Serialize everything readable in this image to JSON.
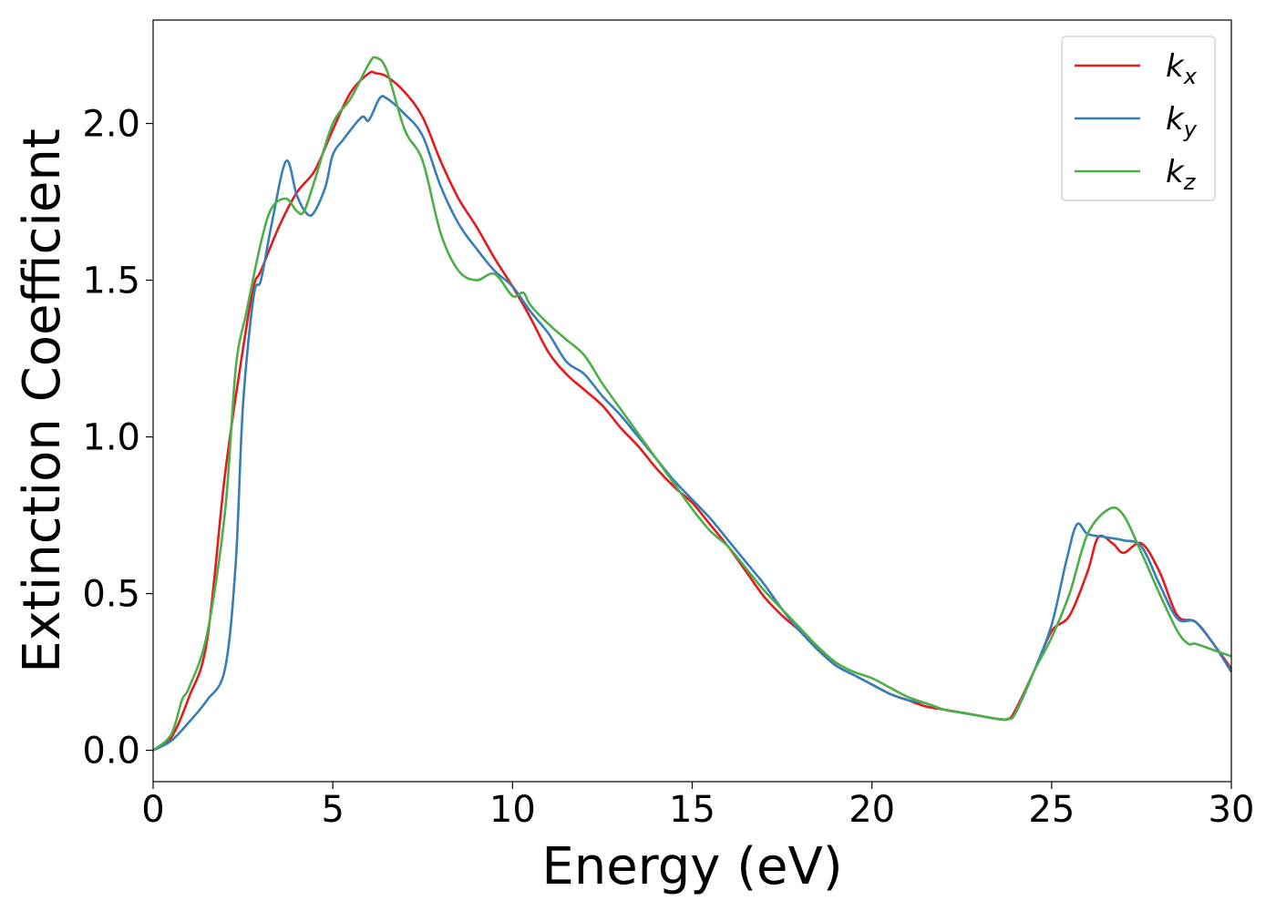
{
  "chart_data": {
    "type": "line",
    "xlabel": "Energy (eV)",
    "ylabel": "Extinction Coefficient",
    "xlim": [
      0,
      30
    ],
    "ylim": [
      -0.1,
      2.33
    ],
    "xticks": [
      0,
      5,
      10,
      15,
      20,
      25,
      30
    ],
    "yticks": [
      0.0,
      0.5,
      1.0,
      1.5,
      2.0
    ],
    "xtick_labels": [
      "0",
      "5",
      "10",
      "15",
      "20",
      "25",
      "30"
    ],
    "ytick_labels": [
      "0.0",
      "0.5",
      "1.0",
      "1.5",
      "2.0"
    ],
    "grid": false,
    "legend_position": "top-right",
    "series": [
      {
        "name": "k_x",
        "base": "k",
        "sub": "x",
        "color": "#e41a1c",
        "x": [
          0,
          0.5,
          1.0,
          1.5,
          2.0,
          2.5,
          2.8,
          3.0,
          3.5,
          4.0,
          4.5,
          5.0,
          5.5,
          6.0,
          6.2,
          6.5,
          7.0,
          7.5,
          8.0,
          8.5,
          9.0,
          9.5,
          10.0,
          10.5,
          11.0,
          11.5,
          12.0,
          12.5,
          13.0,
          13.5,
          14.0,
          14.5,
          15.0,
          15.5,
          16.0,
          16.5,
          17.0,
          17.5,
          18.0,
          18.5,
          19.0,
          19.5,
          20.0,
          20.5,
          21.0,
          21.5,
          22.0,
          22.5,
          23.0,
          23.5,
          23.8,
          24.0,
          24.5,
          25.0,
          25.5,
          26.0,
          26.3,
          26.7,
          27.0,
          27.5,
          28.0,
          28.5,
          29.0,
          29.5,
          30.0
        ],
        "y": [
          0.0,
          0.04,
          0.17,
          0.35,
          0.88,
          1.28,
          1.48,
          1.53,
          1.67,
          1.78,
          1.85,
          1.98,
          2.1,
          2.16,
          2.16,
          2.15,
          2.1,
          2.02,
          1.88,
          1.76,
          1.67,
          1.57,
          1.48,
          1.38,
          1.27,
          1.2,
          1.15,
          1.1,
          1.03,
          0.97,
          0.9,
          0.84,
          0.79,
          0.72,
          0.65,
          0.57,
          0.49,
          0.43,
          0.38,
          0.32,
          0.27,
          0.24,
          0.21,
          0.18,
          0.16,
          0.14,
          0.13,
          0.12,
          0.11,
          0.1,
          0.1,
          0.13,
          0.25,
          0.38,
          0.43,
          0.57,
          0.68,
          0.66,
          0.63,
          0.66,
          0.57,
          0.43,
          0.41,
          0.34,
          0.26
        ]
      },
      {
        "name": "k_y",
        "base": "k",
        "sub": "y",
        "color": "#377eb8",
        "x": [
          0,
          0.5,
          1.0,
          1.5,
          2.0,
          2.3,
          2.5,
          2.8,
          3.0,
          3.3,
          3.7,
          4.0,
          4.3,
          4.5,
          4.8,
          5.0,
          5.3,
          5.8,
          6.0,
          6.3,
          6.5,
          7.0,
          7.5,
          8.0,
          8.5,
          9.0,
          9.5,
          10.0,
          10.5,
          11.0,
          11.5,
          12.0,
          12.5,
          13.0,
          13.5,
          14.0,
          14.5,
          15.0,
          15.5,
          16.0,
          16.5,
          17.0,
          17.5,
          18.0,
          18.5,
          19.0,
          19.5,
          20.0,
          20.5,
          21.0,
          21.5,
          22.0,
          22.5,
          23.0,
          23.5,
          23.8,
          24.0,
          24.5,
          25.0,
          25.4,
          25.7,
          26.0,
          26.5,
          27.0,
          27.5,
          28.0,
          28.5,
          29.0,
          29.5,
          30.0
        ],
        "y": [
          0.0,
          0.03,
          0.09,
          0.16,
          0.26,
          0.6,
          1.1,
          1.45,
          1.5,
          1.68,
          1.88,
          1.77,
          1.71,
          1.72,
          1.8,
          1.9,
          1.95,
          2.02,
          2.01,
          2.08,
          2.08,
          2.03,
          1.96,
          1.8,
          1.68,
          1.6,
          1.53,
          1.48,
          1.4,
          1.33,
          1.24,
          1.2,
          1.13,
          1.07,
          1.0,
          0.93,
          0.86,
          0.8,
          0.74,
          0.67,
          0.6,
          0.53,
          0.45,
          0.38,
          0.32,
          0.27,
          0.24,
          0.21,
          0.18,
          0.16,
          0.15,
          0.13,
          0.12,
          0.11,
          0.1,
          0.1,
          0.12,
          0.25,
          0.4,
          0.6,
          0.72,
          0.69,
          0.68,
          0.67,
          0.65,
          0.53,
          0.42,
          0.41,
          0.34,
          0.25
        ]
      },
      {
        "name": "k_z",
        "base": "k",
        "sub": "z",
        "color": "#4daf4a",
        "x": [
          0,
          0.5,
          0.8,
          1.0,
          1.5,
          2.0,
          2.3,
          2.6,
          3.0,
          3.3,
          3.7,
          4.0,
          4.2,
          4.5,
          5.0,
          5.5,
          6.0,
          6.2,
          6.5,
          7.0,
          7.5,
          8.0,
          8.5,
          9.0,
          9.5,
          10.0,
          10.3,
          10.5,
          11.0,
          11.5,
          12.0,
          12.5,
          13.0,
          13.5,
          14.0,
          14.5,
          15.0,
          15.5,
          16.0,
          16.5,
          17.0,
          17.5,
          18.0,
          18.5,
          19.0,
          19.5,
          20.0,
          20.5,
          21.0,
          21.5,
          22.0,
          22.5,
          23.0,
          23.5,
          23.8,
          24.0,
          24.5,
          25.0,
          25.5,
          26.0,
          26.6,
          27.0,
          27.5,
          28.0,
          28.5,
          28.8,
          29.0,
          29.5,
          30.0
        ],
        "y": [
          0.0,
          0.05,
          0.16,
          0.2,
          0.37,
          0.76,
          1.22,
          1.4,
          1.62,
          1.73,
          1.76,
          1.72,
          1.72,
          1.82,
          2.0,
          2.08,
          2.19,
          2.21,
          2.17,
          1.98,
          1.88,
          1.65,
          1.53,
          1.5,
          1.52,
          1.45,
          1.46,
          1.42,
          1.36,
          1.31,
          1.26,
          1.17,
          1.09,
          1.01,
          0.93,
          0.85,
          0.77,
          0.7,
          0.65,
          0.58,
          0.51,
          0.45,
          0.39,
          0.33,
          0.28,
          0.25,
          0.23,
          0.2,
          0.17,
          0.15,
          0.13,
          0.12,
          0.11,
          0.1,
          0.1,
          0.12,
          0.25,
          0.36,
          0.5,
          0.69,
          0.77,
          0.75,
          0.63,
          0.5,
          0.38,
          0.34,
          0.34,
          0.32,
          0.3
        ]
      }
    ]
  }
}
